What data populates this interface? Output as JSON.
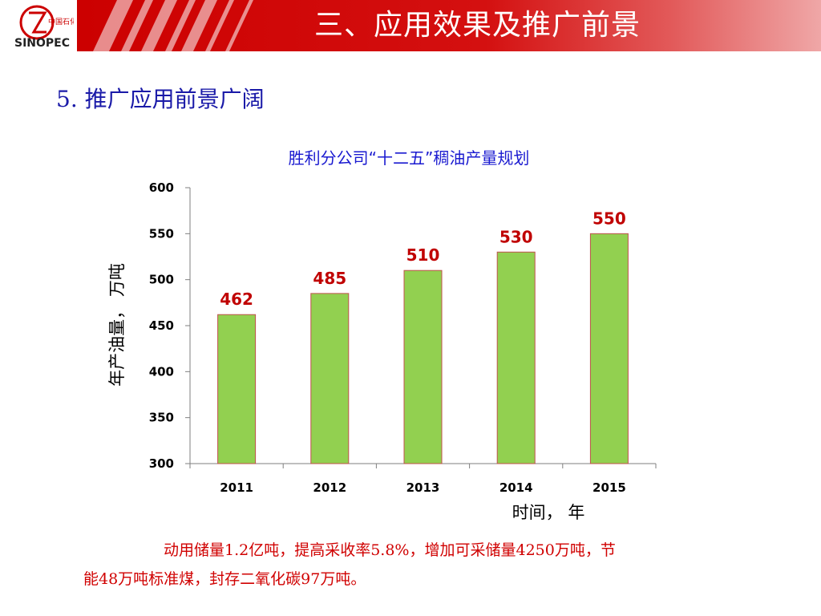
{
  "header": {
    "title": "三、应用效果及推广前景",
    "logo_icon": "sinopec-logo-icon",
    "logo_text": "中国石化"
  },
  "section": {
    "title": "5. 推广应用前景广阔"
  },
  "colors": {
    "banner": "#cc0000",
    "bar_fill": "#92d050",
    "bar_stroke": "#c0504d",
    "data_label": "#c00000",
    "title_blue": "#1a1ad0"
  },
  "chart_data": {
    "type": "bar",
    "title": "胜利分公司“十二五”稠油产量规划",
    "categories": [
      "2011",
      "2012",
      "2013",
      "2014",
      "2015"
    ],
    "values": [
      462,
      485,
      510,
      530,
      550
    ],
    "data_labels": [
      "462",
      "485",
      "510",
      "530",
      "550"
    ],
    "xlabel": "时间， 年",
    "ylabel": "年产油量， 万吨",
    "ylim": [
      300,
      600
    ],
    "yticks": [
      300,
      350,
      400,
      450,
      500,
      550,
      600
    ],
    "grid": false,
    "legend": "none"
  },
  "footer": {
    "line1": "动用储量1.2亿吨，提高采收率5.8%，增加可采储量4250万吨，节",
    "line2": "能48万吨标准煤，封存二氧化碳97万吨。"
  }
}
